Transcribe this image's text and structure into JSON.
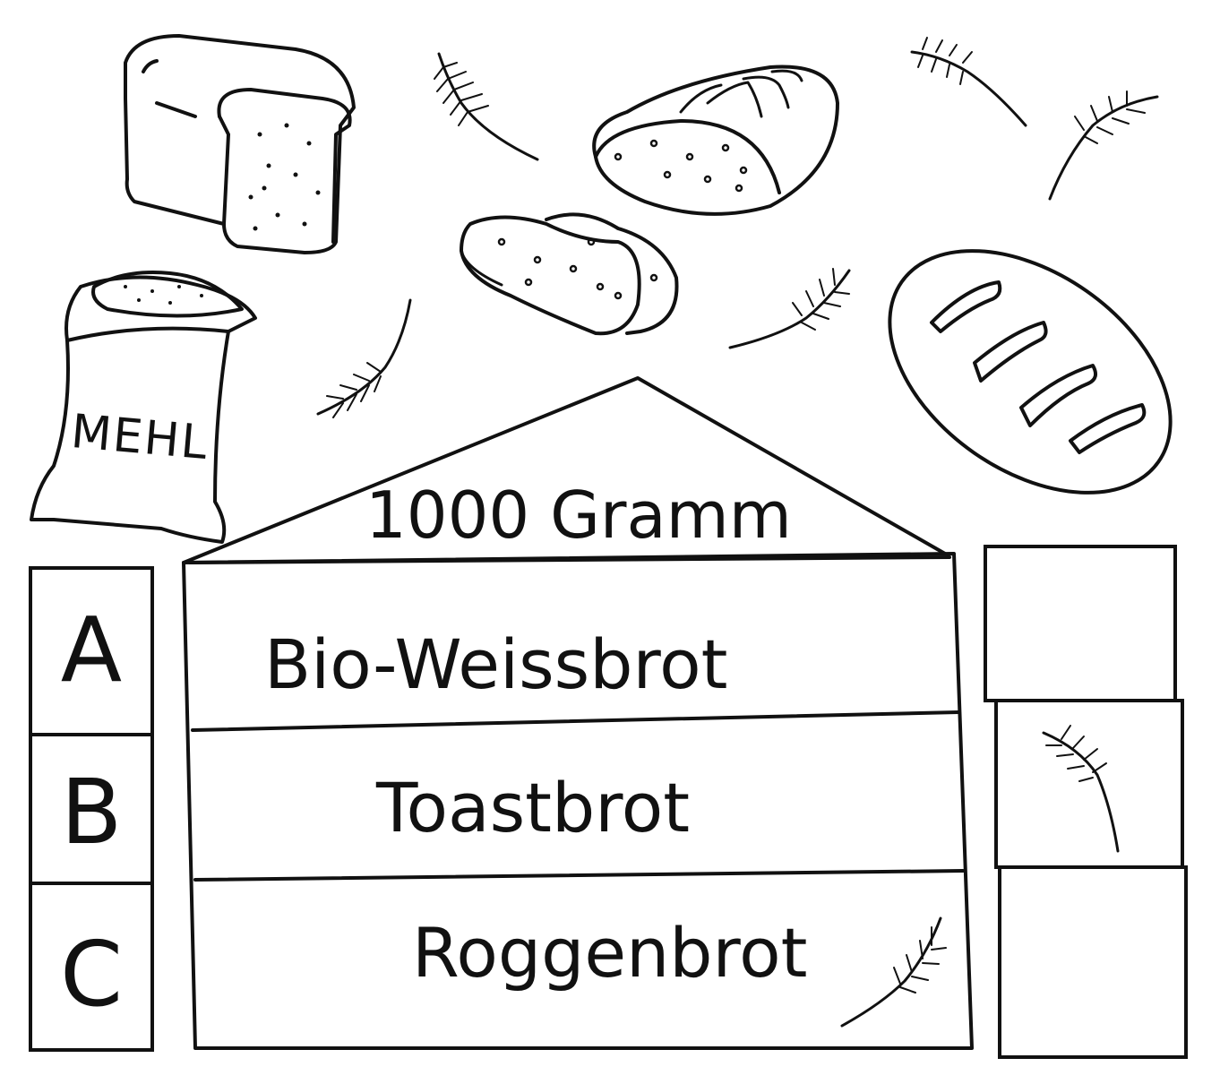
{
  "sack": {
    "label": "MEHL"
  },
  "roof": {
    "label": "1000 Gramm"
  },
  "options": [
    {
      "letter": "A",
      "name": "Bio-Weissbrot"
    },
    {
      "letter": "B",
      "name": "Toastbrot"
    },
    {
      "letter": "C",
      "name": "Roggenbrot"
    }
  ],
  "colors": {
    "ink": "#111111",
    "paper": "#ffffff"
  },
  "icons": [
    "bread-loaf-icon",
    "wheat-ear-icon",
    "flour-sack-icon",
    "bread-slice-icon",
    "baguette-icon"
  ]
}
